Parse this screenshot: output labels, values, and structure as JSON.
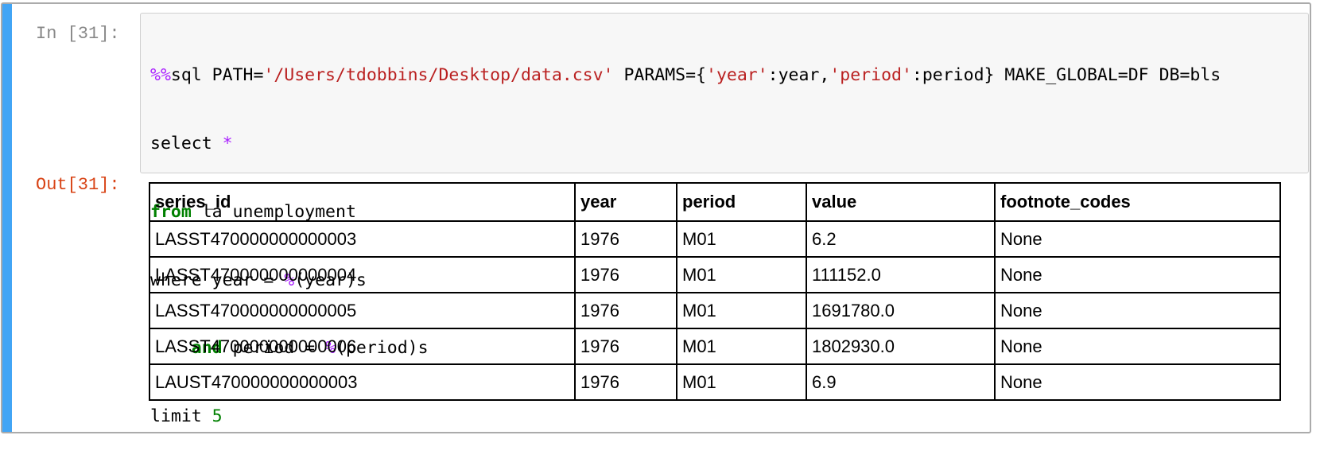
{
  "cell": {
    "in_prompt": "In [31]:",
    "out_prompt": "Out[31]:",
    "accent_color": "#42a5f5"
  },
  "code": {
    "line1": {
      "magic": "%%",
      "head": "sql PATH=",
      "path": "'/Users/tdobbins/Desktop/data.csv'",
      "params_open": " PARAMS={",
      "key_year": "'year'",
      "val_year": ":year,",
      "key_period": "'period'",
      "val_period": ":period}",
      "tail": " MAKE_GLOBAL=DF DB=bls"
    },
    "line2": {
      "text": "select ",
      "star": "*"
    },
    "line3": {
      "kw": "from",
      "text": " la_unemployment"
    },
    "line4": {
      "text": "where year = ",
      "op": "%",
      "rest": "(year)s"
    },
    "line5": {
      "indent": "    ",
      "kw": "and",
      "text": " period = ",
      "op": "%",
      "rest": "(period)s"
    },
    "line6": {
      "text": "limit ",
      "num": "5"
    }
  },
  "output_table": {
    "columns": [
      "series_id",
      "year",
      "period",
      "value",
      "footnote_codes"
    ],
    "rows": [
      [
        "LASST470000000000003",
        "1976",
        "M01",
        "6.2",
        "None"
      ],
      [
        "LASST470000000000004",
        "1976",
        "M01",
        "111152.0",
        "None"
      ],
      [
        "LASST470000000000005",
        "1976",
        "M01",
        "1691780.0",
        "None"
      ],
      [
        "LASST470000000000006",
        "1976",
        "M01",
        "1802930.0",
        "None"
      ],
      [
        "LAUST470000000000003",
        "1976",
        "M01",
        "6.9",
        "None"
      ]
    ]
  }
}
